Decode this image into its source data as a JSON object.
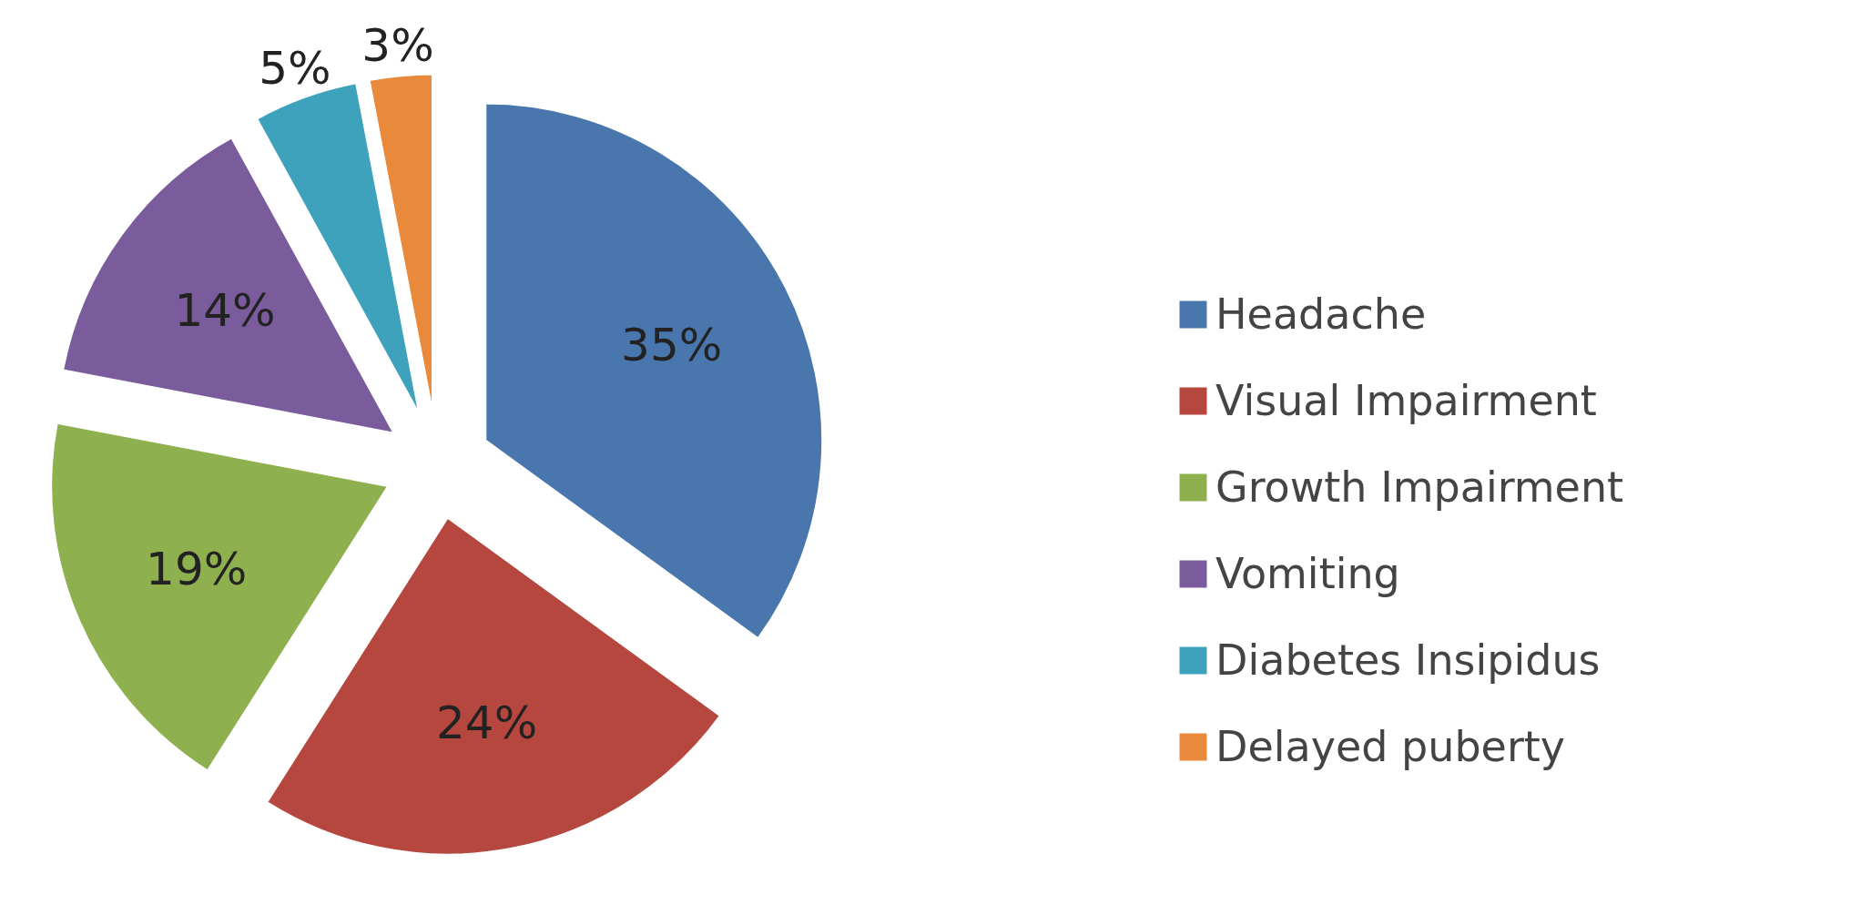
{
  "chart_data": {
    "type": "pie",
    "categories": [
      "Headache",
      "Visual Impairment",
      "Growth Impairment",
      "Vomiting",
      "Diabetes Insipidus",
      "Delayed puberty"
    ],
    "values": [
      35,
      24,
      19,
      14,
      5,
      3
    ],
    "colors": [
      "#4a76ae",
      "#b5473f",
      "#8fb04e",
      "#7a5b9c",
      "#3fa2bd",
      "#e9893b"
    ],
    "value_labels": [
      "35%",
      "24%",
      "19%",
      "14%",
      "5%",
      "3%"
    ],
    "legend": "right"
  }
}
